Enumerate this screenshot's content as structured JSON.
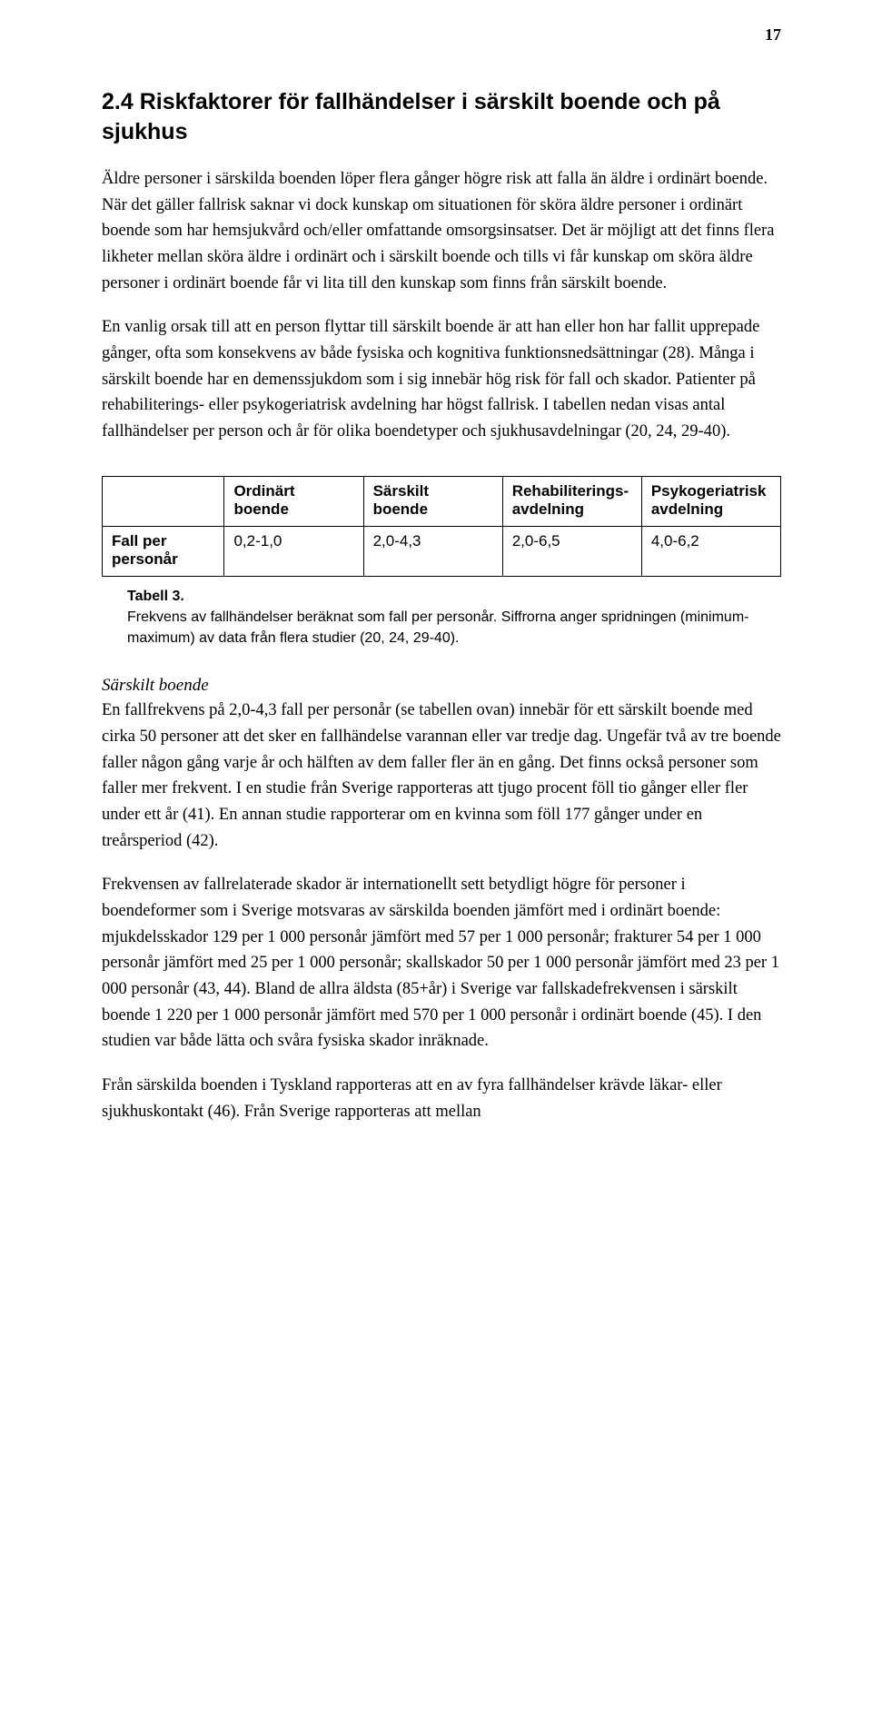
{
  "page_number": "17",
  "heading": "2.4 Riskfaktorer för fallhändelser i särskilt boende och på sjukhus",
  "para1": "Äldre personer i särskilda boenden löper flera gånger högre risk att falla än äldre i ordinärt boende. När det gäller fallrisk saknar vi dock kunskap om situationen för sköra äldre personer i ordinärt boende som har hemsjukvård och/eller omfattande omsorgsinsatser. Det är möjligt att det finns flera likheter mellan sköra äldre i ordinärt och i särskilt boende och tills vi får kunskap om sköra äldre personer i ordinärt boende får vi lita till den kunskap som finns från särskilt boende.",
  "para2": "En vanlig orsak till att en person flyttar till särskilt boende är att han eller hon har fallit upprepade gånger, ofta som konsekvens av både fysiska och kognitiva funktionsnedsättningar (28). Många i särskilt boende har en demenssjukdom som i sig innebär hög risk för fall och skador. Patienter på rehabiliterings- eller psykogeriatrisk avdelning har högst fallrisk. I tabellen nedan visas antal fallhändelser per person och år för olika boendetyper och sjukhusavdelningar (20, 24, 29-40).",
  "table": {
    "columns": [
      {
        "line1": "Ordinärt",
        "line2": "boende"
      },
      {
        "line1": "Särskilt",
        "line2": "boende"
      },
      {
        "line1": "Rehabiliterings-",
        "line2": "avdelning"
      },
      {
        "line1": "Psykogeriatrisk",
        "line2": "avdelning"
      }
    ],
    "row_label_line1": "Fall per",
    "row_label_line2": "personår",
    "values": [
      "0,2-1,0",
      "2,0-4,3",
      "2,0-6,5",
      "4,0-6,2"
    ]
  },
  "table_caption_title": "Tabell 3.",
  "table_caption_text": "Frekvens av fallhändelser beräknat som fall per personår. Siffrorna anger spridningen (minimum-maximum) av data från flera studier (20, 24, 29-40).",
  "subheading_italic": "Särskilt boende",
  "para3": "En fallfrekvens på 2,0-4,3 fall per personår (se tabellen ovan) innebär för ett särskilt boende med cirka 50 personer att det sker en fallhändelse varannan eller var tredje dag. Ungefär två av tre boende faller någon gång varje år och hälften av dem faller fler än en gång. Det finns också personer som faller mer frekvent. I en studie från Sverige rapporteras att tjugo procent föll tio gånger eller fler under ett år (41). En annan studie rapporterar om en kvinna som föll 177 gånger under en treårsperiod (42).",
  "para4": "Frekvensen av fallrelaterade skador är internationellt sett betydligt högre för personer i boendeformer som i Sverige motsvaras av särskilda boenden jämfört med i ordinärt boende: mjukdelsskador 129 per 1 000 personår jämfört med 57 per 1 000 personår; frakturer 54 per 1 000 personår jämfört med 25 per 1 000 personår; skallskador 50 per 1 000 personår jämfört med 23 per 1 000 personår (43, 44). Bland de allra äldsta (85+år) i Sverige var fallskadefrekvensen i särskilt boende 1 220 per 1 000 personår jämfört med 570 per 1 000 personår i ordinärt boende (45). I den studien var både lätta och svåra fysiska skador inräknade.",
  "para5": "Från särskilda boenden i Tyskland rapporteras att en av fyra fallhändelser krävde läkar- eller sjukhuskontakt (46). Från Sverige rapporteras att mellan"
}
